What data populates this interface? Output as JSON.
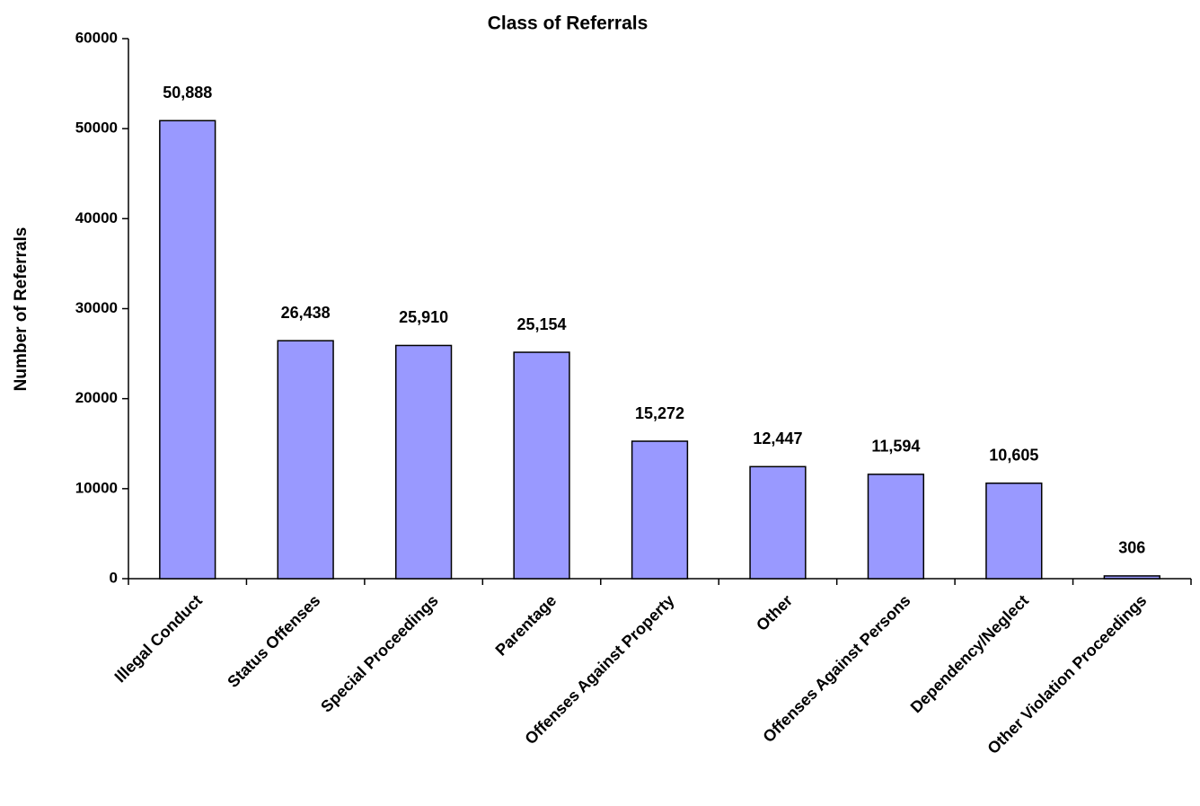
{
  "chart_data": {
    "type": "bar",
    "title": "Class of Referrals",
    "y_label": "Number of Referrals",
    "categories": [
      "Illegal Conduct",
      "Status Offenses",
      "Special Proceedings",
      "Parentage",
      "Offenses Against Property",
      "Other",
      "Offenses Against Persons",
      "Dependency/Neglect",
      "Other Violation Proceedings"
    ],
    "values": [
      50888,
      26438,
      25910,
      25154,
      15272,
      12447,
      11594,
      10605,
      306
    ],
    "value_labels": [
      "50,888",
      "26,438",
      "25,910",
      "25,154",
      "15,272",
      "12,447",
      "11,594",
      "10,605",
      "306"
    ],
    "color": "#9999ff",
    "ylim": [
      0,
      60000
    ],
    "yticks": [
      0,
      10000,
      20000,
      30000,
      40000,
      50000,
      60000
    ],
    "grid": false
  }
}
